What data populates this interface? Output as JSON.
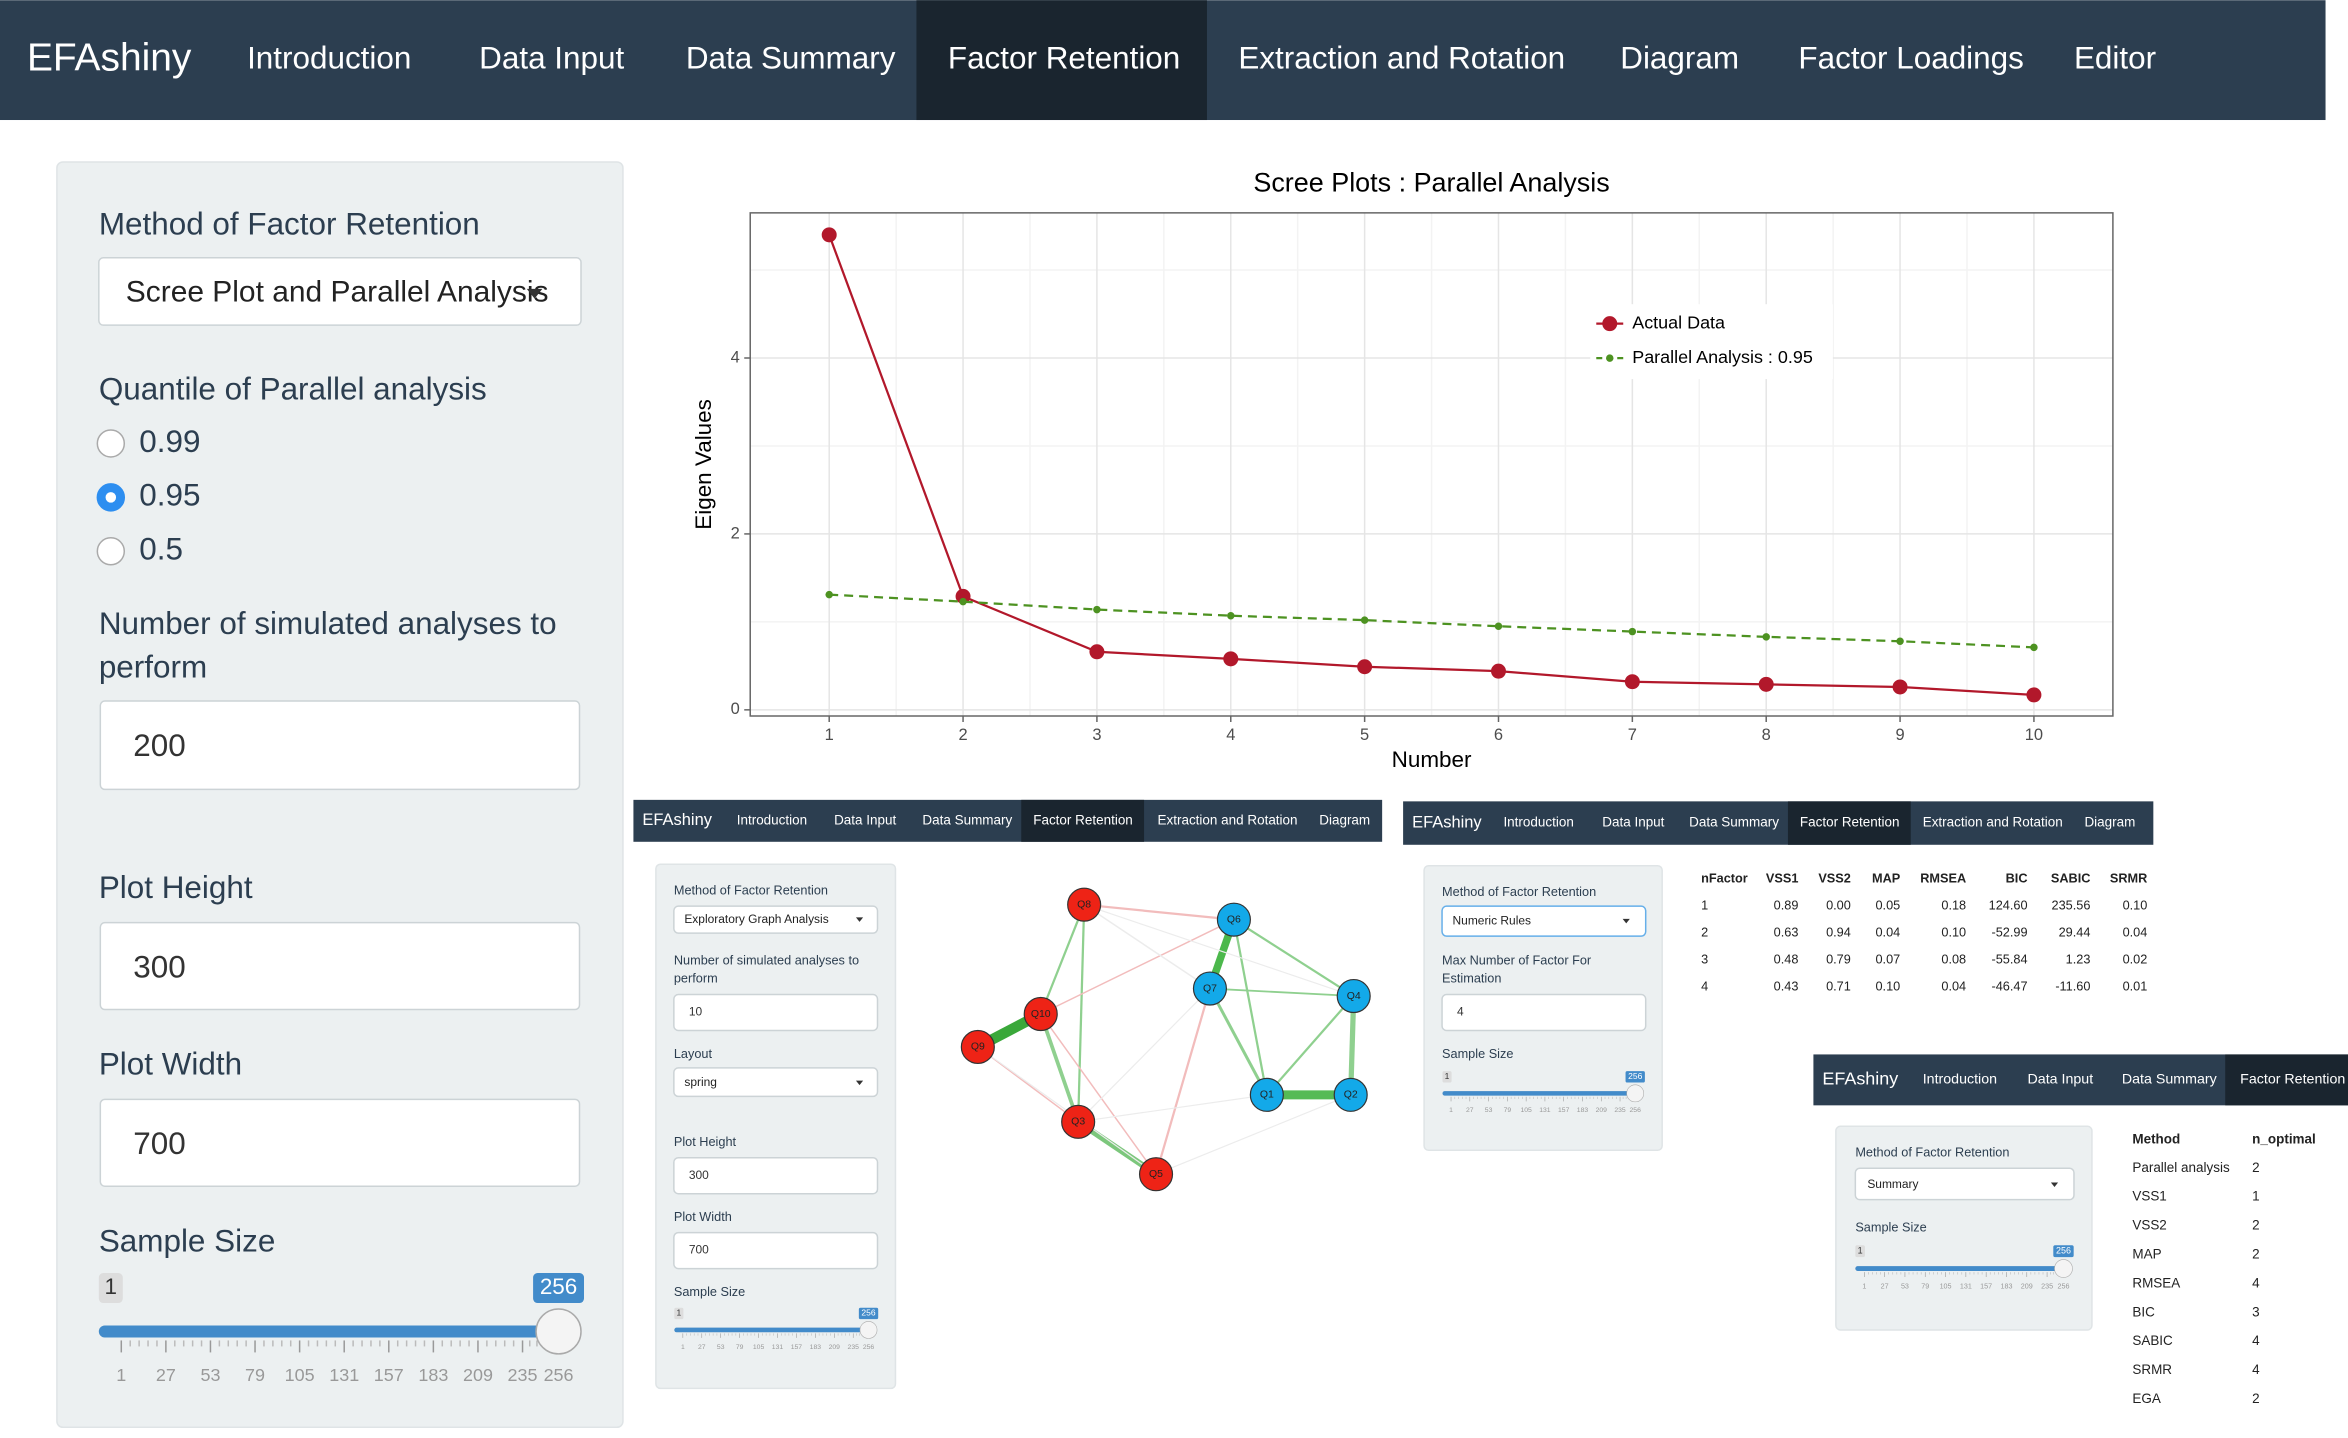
{
  "navbar": {
    "brand": "EFAshiny",
    "tabs": [
      "Introduction",
      "Data Input",
      "Data Summary",
      "Factor Retention",
      "Extraction and Rotation",
      "Diagram",
      "Factor Loadings",
      "Editor"
    ],
    "active_tab": 3
  },
  "sidebar": {
    "method_label": "Method of Factor Retention",
    "method_value": "Scree Plot and Parallel Analysis",
    "quantile_label": "Quantile of Parallel analysis",
    "quantile_options": [
      "0.99",
      "0.95",
      "0.5"
    ],
    "quantile_selected": 1,
    "simulations_label": "Number of simulated analyses to perform",
    "simulations_value": 200,
    "height_label": "Plot Height",
    "height_value": 300,
    "width_label": "Plot Width",
    "width_value": 700,
    "sample_label": "Sample Size",
    "slider": {
      "min": 1,
      "max": 256,
      "value": 256,
      "ticks": [
        1,
        27,
        53,
        79,
        105,
        131,
        157,
        183,
        209,
        235,
        256
      ]
    }
  },
  "chart_data": {
    "type": "line",
    "title": "Scree Plots : Parallel Analysis",
    "x_label": "Number",
    "y_label": "Eigen Values",
    "x": [
      1,
      2,
      3,
      4,
      5,
      6,
      7,
      8,
      9,
      10
    ],
    "series": [
      {
        "name": "Actual Data",
        "color": "#b2182b",
        "values": [
          5.4,
          1.29,
          0.66,
          0.58,
          0.49,
          0.44,
          0.32,
          0.29,
          0.26,
          0.17
        ]
      },
      {
        "name": "Parallel Analysis : 0.95",
        "color": "#4d9221",
        "dashed": true,
        "values": [
          1.31,
          1.23,
          1.14,
          1.07,
          1.02,
          0.95,
          0.89,
          0.83,
          0.78,
          0.71
        ]
      }
    ],
    "xlim": [
      0.41,
      10.59
    ],
    "ylim": [
      -0.07,
      5.65
    ],
    "xticks": [
      1,
      2,
      3,
      4,
      5,
      6,
      7,
      8,
      9,
      10
    ],
    "yticks": [
      0,
      2,
      4
    ],
    "grid": true,
    "legend": "top-right"
  },
  "inset_graph": {
    "navbar": {
      "brand": "EFAshiny",
      "tabs": [
        "Introduction",
        "Data Input",
        "Data Summary",
        "Factor Retention",
        "Extraction and Rotation",
        "Diagram"
      ],
      "active_tab": 3
    },
    "sidebar": {
      "method_label": "Method of Factor Retention",
      "method_value": "Exploratory Graph Analysis",
      "simulations_label": "Number of simulated analyses to perform",
      "simulations_value": 10,
      "layout_label": "Layout",
      "layout_value": "spring",
      "height_label": "Plot Height",
      "height_value": 300,
      "width_label": "Plot Width",
      "width_value": 700,
      "sample_label": "Sample Size",
      "slider": {
        "min": 1,
        "max": 256,
        "value": 256,
        "ticks": [
          1,
          27,
          53,
          79,
          105,
          131,
          157,
          183,
          209,
          235,
          256
        ]
      }
    },
    "network": {
      "nodes": [
        {
          "label": "Q1",
          "color": "#13a9e9"
        },
        {
          "label": "Q2",
          "color": "#13a9e9"
        },
        {
          "label": "Q3",
          "color": "#ee2316"
        },
        {
          "label": "Q4",
          "color": "#13a9e9"
        },
        {
          "label": "Q5",
          "color": "#ee2316"
        },
        {
          "label": "Q6",
          "color": "#13a9e9"
        },
        {
          "label": "Q7",
          "color": "#13a9e9"
        },
        {
          "label": "Q8",
          "color": "#ee2316"
        },
        {
          "label": "Q9",
          "color": "#ee2316"
        },
        {
          "label": "Q10",
          "color": "#ee2316"
        }
      ]
    }
  },
  "inset_rules": {
    "navbar": {
      "brand": "EFAshiny",
      "tabs": [
        "Introduction",
        "Data Input",
        "Data Summary",
        "Factor Retention",
        "Extraction and Rotation",
        "Diagram"
      ],
      "active_tab": 3
    },
    "sidebar": {
      "method_label": "Method of Factor Retention",
      "method_value": "Numeric Rules",
      "max_label": "Max Number of Factor For Estimation",
      "max_value": 4,
      "sample_label": "Sample Size",
      "slider": {
        "min": 1,
        "max": 256,
        "value": 256,
        "ticks": [
          1,
          27,
          53,
          79,
          105,
          131,
          157,
          183,
          209,
          235,
          256
        ]
      }
    },
    "table": {
      "columns": [
        "nFactor",
        "VSS1",
        "VSS2",
        "MAP",
        "RMSEA",
        "BIC",
        "SABIC",
        "SRMR"
      ],
      "rows": [
        [
          "1",
          "0.89",
          "0.00",
          "0.05",
          "0.18",
          "124.60",
          "235.56",
          "0.10"
        ],
        [
          "2",
          "0.63",
          "0.94",
          "0.04",
          "0.10",
          "-52.99",
          "29.44",
          "0.04"
        ],
        [
          "3",
          "0.48",
          "0.79",
          "0.07",
          "0.08",
          "-55.84",
          "1.23",
          "0.02"
        ],
        [
          "4",
          "0.43",
          "0.71",
          "0.10",
          "0.04",
          "-46.47",
          "-11.60",
          "0.01"
        ]
      ]
    }
  },
  "inset_summary": {
    "navbar": {
      "brand": "EFAshiny",
      "tabs": [
        "Introduction",
        "Data Input",
        "Data Summary",
        "Factor Retention"
      ],
      "active_tab": 3
    },
    "sidebar": {
      "method_label": "Method of Factor Retention",
      "method_value": "Summary",
      "sample_label": "Sample Size",
      "slider": {
        "min": 1,
        "max": 256,
        "value": 256,
        "ticks": [
          1,
          27,
          53,
          79,
          105,
          131,
          157,
          183,
          209,
          235,
          256
        ]
      }
    },
    "table": {
      "columns": [
        "Method",
        "n_optimal"
      ],
      "rows": [
        [
          "Parallel analysis",
          "2"
        ],
        [
          "VSS1",
          "1"
        ],
        [
          "VSS2",
          "2"
        ],
        [
          "MAP",
          "2"
        ],
        [
          "RMSEA",
          "4"
        ],
        [
          "BIC",
          "3"
        ],
        [
          "SABIC",
          "4"
        ],
        [
          "SRMR",
          "4"
        ],
        [
          "EGA",
          "2"
        ]
      ]
    }
  }
}
